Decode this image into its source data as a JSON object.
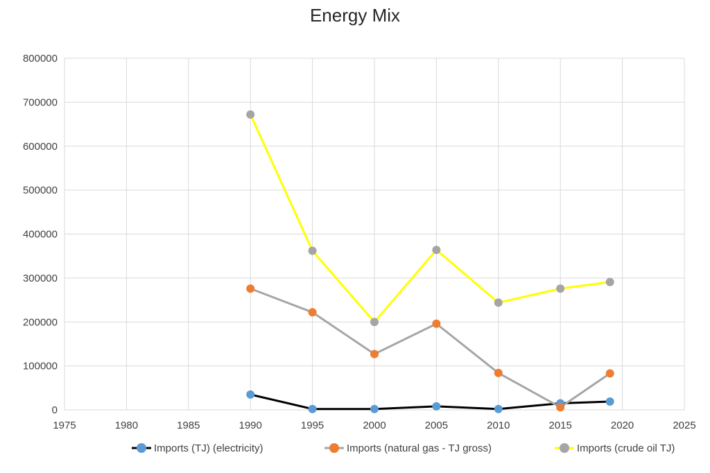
{
  "chart_data": {
    "type": "scatter",
    "title": "Energy Mix",
    "xlabel": "",
    "ylabel": "",
    "xlim": [
      1975,
      2025
    ],
    "ylim": [
      0,
      800000
    ],
    "x_ticks": [
      "1975",
      "1980",
      "1985",
      "1990",
      "1995",
      "2000",
      "2005",
      "2010",
      "2015",
      "2020",
      "2025"
    ],
    "y_ticks": [
      "0",
      "100000",
      "200000",
      "300000",
      "400000",
      "500000",
      "600000",
      "700000",
      "800000"
    ],
    "grid": true,
    "legend_position": "bottom",
    "series": [
      {
        "name": "Imports (TJ) (electricity)",
        "marker_color": "#5b9bd5",
        "line_color": "#000000",
        "x": [
          1990,
          1995,
          2000,
          2005,
          2010,
          2015,
          2019
        ],
        "y": [
          35000,
          2000,
          2000,
          8000,
          2000,
          15000,
          19000
        ]
      },
      {
        "name": "Imports (natural gas - TJ gross)",
        "marker_color": "#ed7d31",
        "line_color": "#a5a5a5",
        "x": [
          1990,
          1995,
          2000,
          2005,
          2010,
          2015,
          2019
        ],
        "y": [
          276000,
          222000,
          127000,
          196000,
          84000,
          6000,
          83000
        ]
      },
      {
        "name": "Imports (crude oil TJ)",
        "marker_color": "#a5a5a5",
        "line_color": "#ffff00",
        "x": [
          1990,
          1995,
          2000,
          2005,
          2010,
          2015,
          2019
        ],
        "y": [
          672000,
          362000,
          200000,
          364000,
          244000,
          276000,
          291000
        ]
      }
    ]
  }
}
